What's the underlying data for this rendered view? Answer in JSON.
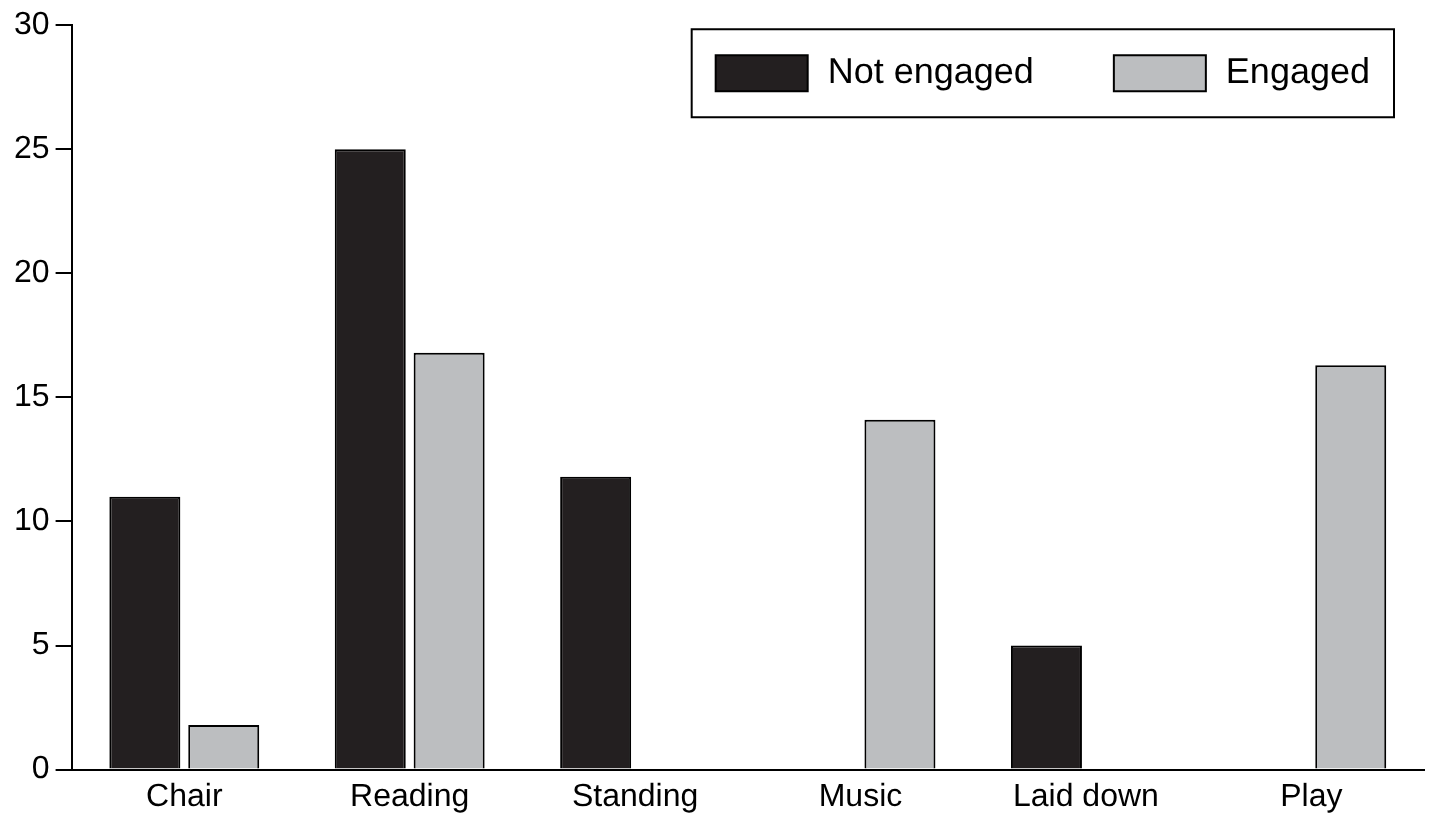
{
  "chart_data": {
    "type": "bar",
    "categories": [
      "Chair",
      "Reading",
      "Standing",
      "Music",
      "Laid down",
      "Play"
    ],
    "series": [
      {
        "name": "Not engaged",
        "color": "#231f20",
        "values": [
          11,
          25,
          11.8,
          0,
          5,
          0
        ]
      },
      {
        "name": "Engaged",
        "color": "#bcbec0",
        "values": [
          1.8,
          16.8,
          0,
          14.1,
          0,
          16.3
        ]
      }
    ],
    "ylim": [
      0,
      30
    ],
    "yticks": [
      0,
      5,
      10,
      15,
      20,
      25,
      30
    ],
    "grid": false,
    "legend": "top right"
  }
}
